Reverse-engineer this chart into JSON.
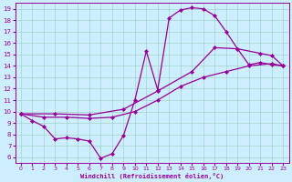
{
  "xlabel": "Windchill (Refroidissement éolien,°C)",
  "background_color": "#cceeff",
  "line_color": "#990099",
  "marker": "D",
  "markersize": 2,
  "linewidth": 0.9,
  "xlim": [
    -0.5,
    23.5
  ],
  "ylim": [
    5.5,
    19.5
  ],
  "xticks": [
    0,
    1,
    2,
    3,
    4,
    5,
    6,
    7,
    8,
    9,
    10,
    11,
    12,
    13,
    14,
    15,
    16,
    17,
    18,
    19,
    20,
    21,
    22,
    23
  ],
  "yticks": [
    6,
    7,
    8,
    9,
    10,
    11,
    12,
    13,
    14,
    15,
    16,
    17,
    18,
    19
  ],
  "series1": [
    [
      0,
      9.8
    ],
    [
      1,
      9.2
    ],
    [
      2,
      8.7
    ],
    [
      3,
      7.6
    ],
    [
      4,
      7.7
    ],
    [
      5,
      7.6
    ],
    [
      6,
      7.4
    ],
    [
      7,
      5.9
    ],
    [
      8,
      6.3
    ],
    [
      9,
      7.9
    ],
    [
      10,
      11.0
    ],
    [
      11,
      15.3
    ],
    [
      12,
      11.9
    ],
    [
      13,
      18.2
    ],
    [
      14,
      18.9
    ],
    [
      15,
      19.1
    ],
    [
      16,
      19.0
    ],
    [
      17,
      18.4
    ],
    [
      18,
      17.0
    ],
    [
      19,
      15.5
    ],
    [
      20,
      14.1
    ],
    [
      21,
      14.3
    ],
    [
      22,
      14.1
    ],
    [
      23,
      14.0
    ]
  ],
  "series2": [
    [
      0,
      9.8
    ],
    [
      2,
      9.5
    ],
    [
      4,
      9.5
    ],
    [
      6,
      9.4
    ],
    [
      8,
      9.5
    ],
    [
      10,
      10.0
    ],
    [
      12,
      11.0
    ],
    [
      14,
      12.2
    ],
    [
      16,
      13.0
    ],
    [
      18,
      13.5
    ],
    [
      20,
      14.0
    ],
    [
      22,
      14.2
    ],
    [
      23,
      14.0
    ]
  ],
  "series3": [
    [
      0,
      9.8
    ],
    [
      3,
      9.8
    ],
    [
      6,
      9.7
    ],
    [
      9,
      10.2
    ],
    [
      12,
      11.8
    ],
    [
      15,
      13.5
    ],
    [
      17,
      15.6
    ],
    [
      19,
      15.5
    ],
    [
      21,
      15.1
    ],
    [
      22,
      14.9
    ],
    [
      23,
      14.0
    ]
  ]
}
